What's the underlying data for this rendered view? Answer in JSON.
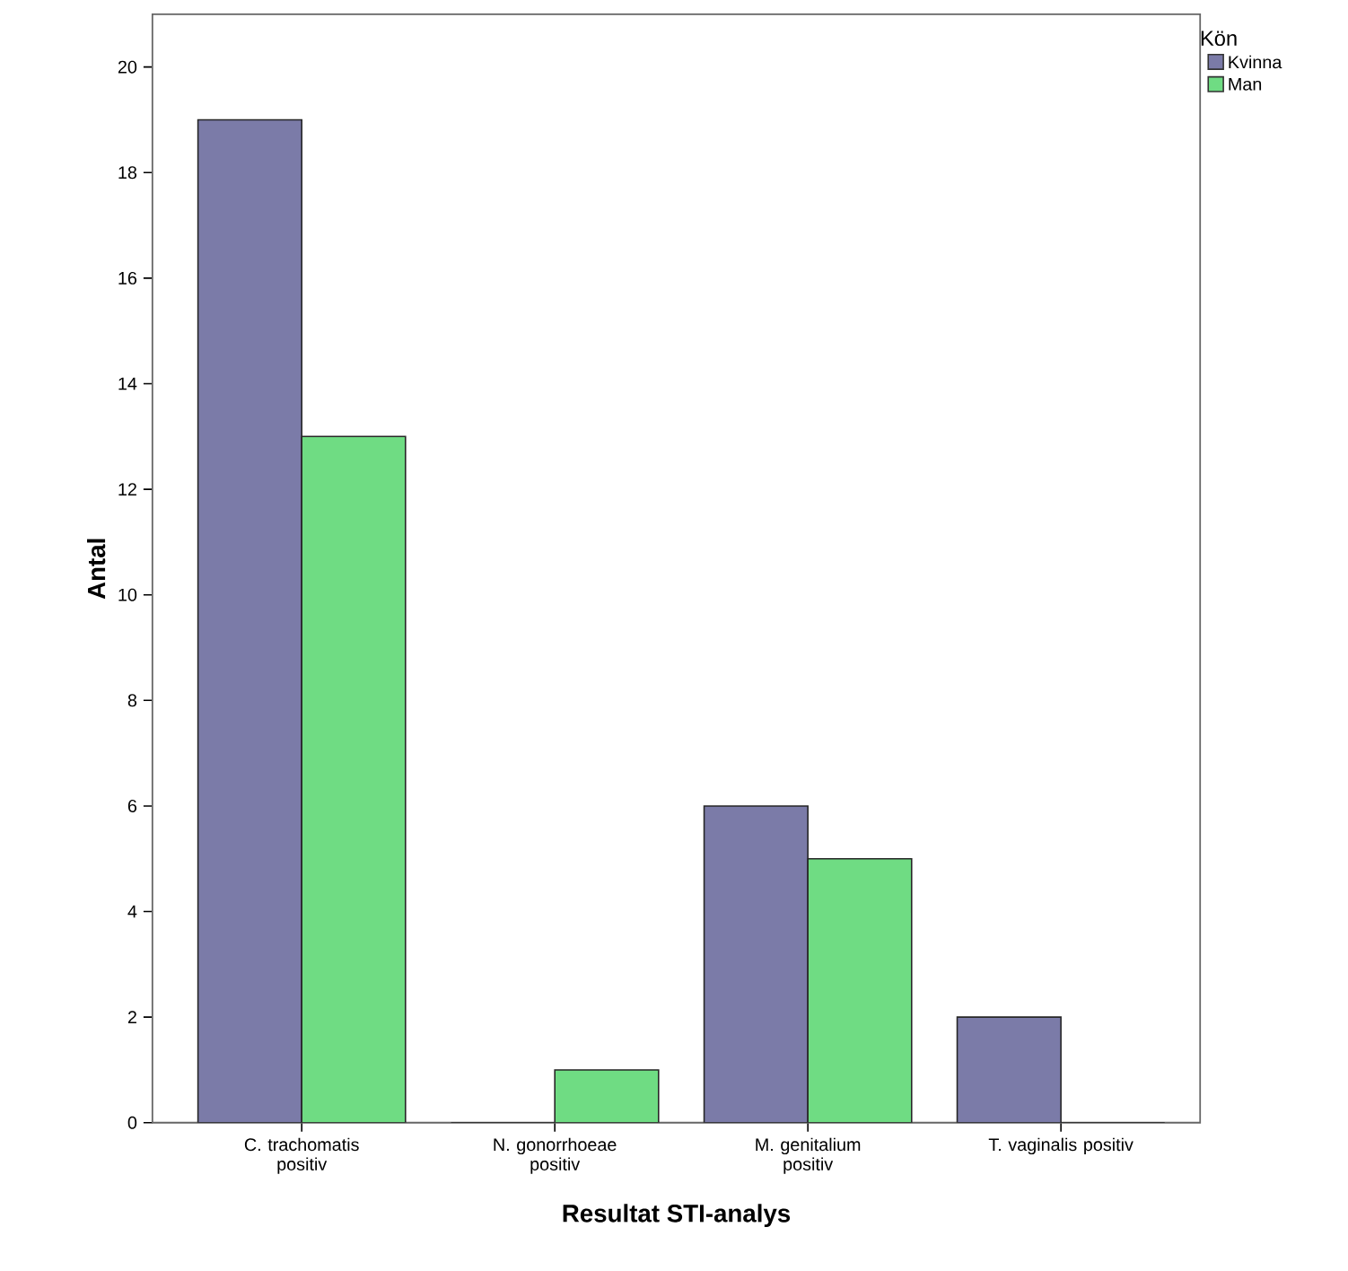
{
  "chart_data": {
    "type": "bar",
    "xlabel": "Resultat STI-analys",
    "ylabel": "Antal",
    "legend_title": "Kön",
    "legend": "top right",
    "categories": [
      "C. trachomatis positiv",
      "N. gonorrhoeae positiv",
      "M. genitalium positiv",
      "T. vaginalis positiv"
    ],
    "series": [
      {
        "name": "Kvinna",
        "color": "#7b7ba8",
        "values": [
          19,
          0,
          6,
          2
        ]
      },
      {
        "name": "Man",
        "color": "#6fdc83",
        "values": [
          13,
          1,
          5,
          0
        ]
      }
    ],
    "ylim": [
      0,
      21
    ],
    "yticks": [
      0,
      2,
      4,
      6,
      8,
      10,
      12,
      14,
      16,
      18,
      20
    ]
  }
}
